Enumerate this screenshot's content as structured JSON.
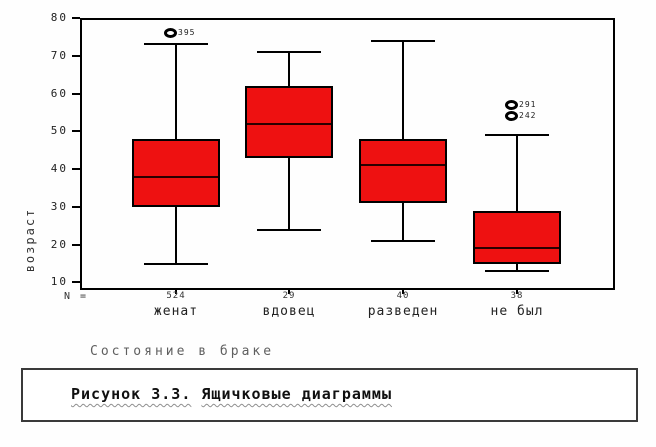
{
  "chart": {
    "n_prefix": "N =",
    "box_fill": "#ee1111",
    "frame_color": "#000000",
    "outlier_marker": "circle-icon"
  },
  "chart_data": {
    "type": "boxplot",
    "title": "",
    "ylabel": "возраст",
    "xlabel": "Состояние в браке",
    "ylim": [
      8,
      80
    ],
    "yticks": [
      10,
      20,
      30,
      40,
      50,
      60,
      70,
      80
    ],
    "grid": false,
    "categories": [
      "женат",
      "вдовец",
      "разведен",
      "не был"
    ],
    "n_values": [
      "524",
      "29",
      "40",
      "38"
    ],
    "series": [
      {
        "category": "женат",
        "n": "524",
        "whisker_low": 15,
        "q1": 30,
        "median": 38,
        "q3": 48,
        "whisker_high": 73,
        "outliers": [
          {
            "value": 76,
            "label": "395"
          }
        ]
      },
      {
        "category": "вдовец",
        "n": "29",
        "whisker_low": 24,
        "q1": 43,
        "median": 52,
        "q3": 62,
        "whisker_high": 71,
        "outliers": []
      },
      {
        "category": "разведен",
        "n": "40",
        "whisker_low": 21,
        "q1": 31,
        "median": 41,
        "q3": 48,
        "whisker_high": 74,
        "outliers": []
      },
      {
        "category": "не был",
        "n": "38",
        "whisker_low": 13,
        "q1": 15,
        "median": 19,
        "q3": 29,
        "whisker_high": 49,
        "outliers": [
          {
            "value": 54,
            "label": "242"
          },
          {
            "value": 57,
            "label": "291"
          }
        ]
      }
    ]
  },
  "caption": {
    "segments": [
      {
        "text": "Рисунок 3.3.",
        "wavy": true
      },
      {
        "text": " ",
        "wavy": false
      },
      {
        "text": "Ящичковые диаграммы",
        "wavy": true
      }
    ]
  }
}
